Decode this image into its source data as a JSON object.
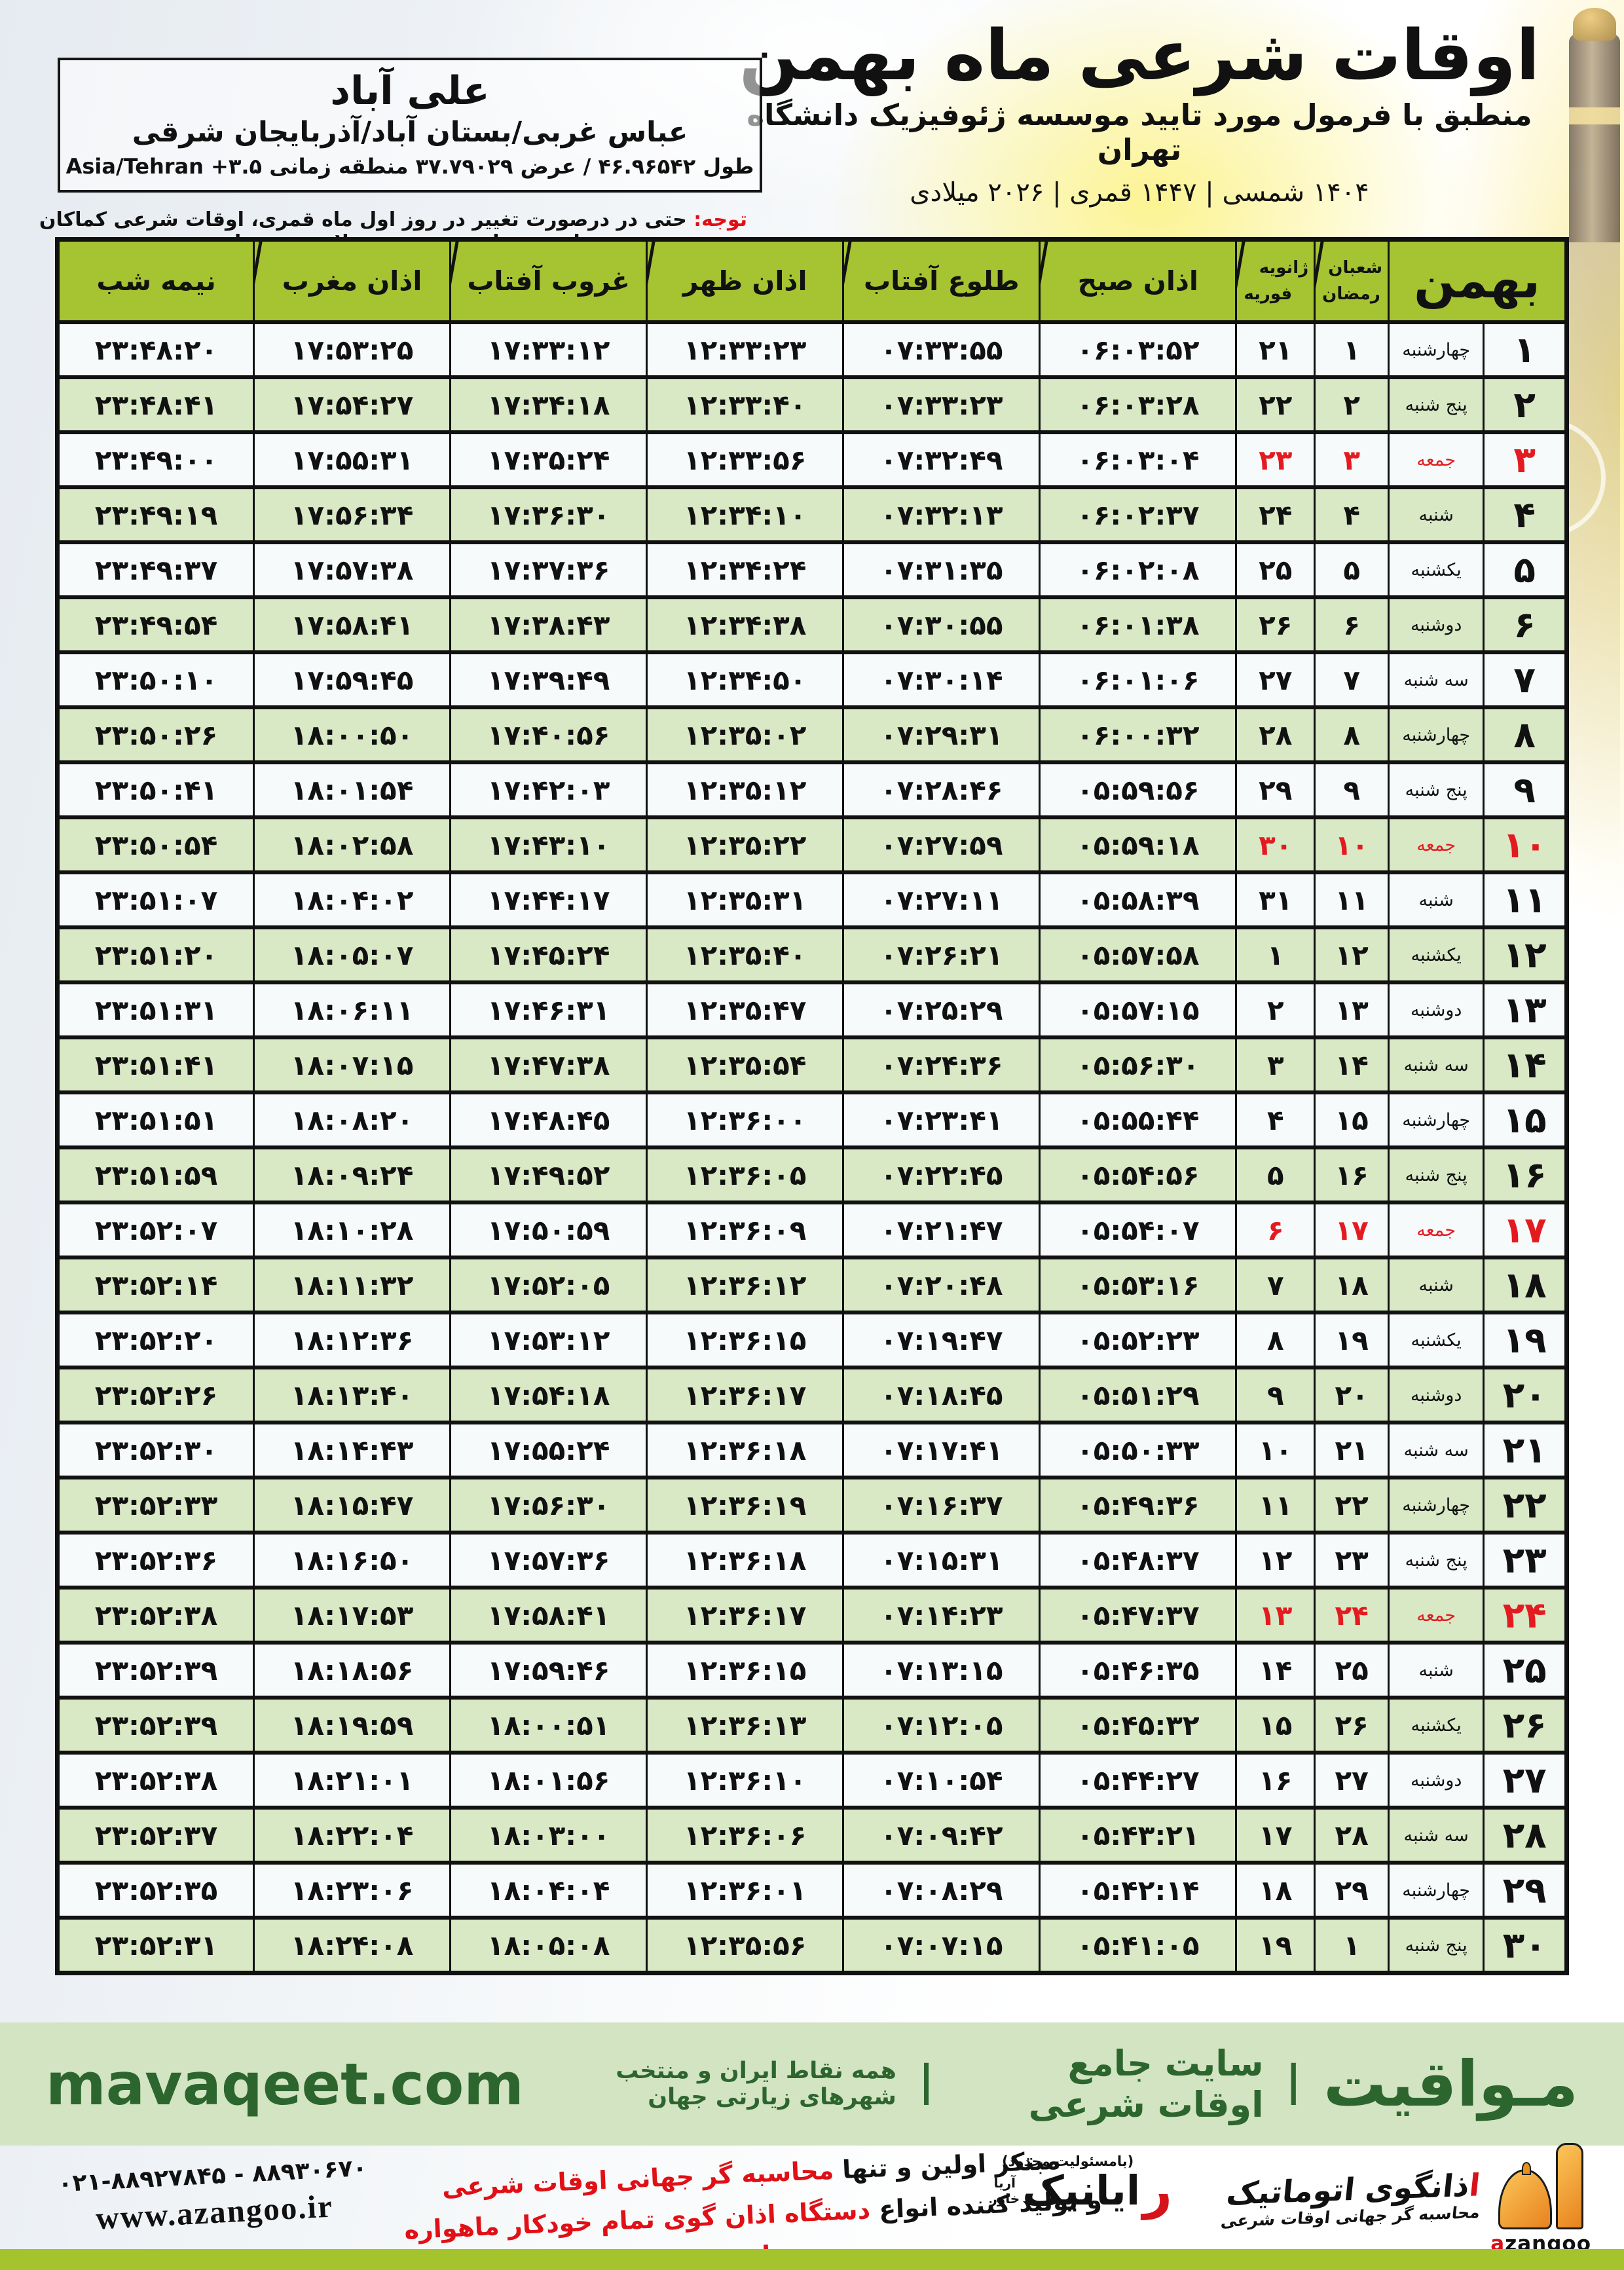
{
  "colors": {
    "header_green": "#a6c331",
    "row_green": "#d9e8c5",
    "friday_red": "#e31b21",
    "band_green": "#d2e4c2",
    "brand_dark_green": "#2d652f",
    "bottom_bar_green": "#a4c32d",
    "logo_orange": "#e8821e"
  },
  "header": {
    "title": "اوقات شرعی ماه بهمن",
    "subtitle": "منطبق با فرمول مورد تایید موسسه ژئوفیزیک دانشگاه تهران",
    "years": "۱۴۰۴ شمسی | ۱۴۴۷ قمری | ۲۰۲۶ میلادی"
  },
  "location": {
    "city": "علی آباد",
    "region": "عباس غربی/بستان آباد/آذربایجان شرقی",
    "coords": "طول ۴۶.۹۶۵۴۲ / عرض ۳۷.۷۹۰۲۹ منطقه زمانی ۳.۵+ Asia/Tehran"
  },
  "note": {
    "label": "توجه:",
    "text": " حتی در درصورت تغییر در روز اول ماه قمری، اوقات شرعی کماکان برای روزهای شمسی و میلادی معتبر است."
  },
  "table": {
    "headers": {
      "month": "بهمن",
      "lunar_top": "شعبان",
      "lunar_bottom": "رمضان",
      "greg_top": "ژانویه",
      "greg_bottom": "فوریه",
      "cols": [
        "اذان صبح",
        "طلوع آفتاب",
        "اذان ظهر",
        "غروب آفتاب",
        "اذان مغرب",
        "نیمه شب"
      ]
    },
    "rows": [
      {
        "d": "۱",
        "w": "چهارشنبه",
        "l": "۱",
        "g": "۲۱",
        "t": [
          "۰۶:۰۳:۵۲",
          "۰۷:۳۳:۵۵",
          "۱۲:۳۳:۲۳",
          "۱۷:۳۳:۱۲",
          "۱۷:۵۳:۲۵",
          "۲۳:۴۸:۲۰"
        ],
        "f": false
      },
      {
        "d": "۲",
        "w": "پنج شنبه",
        "l": "۲",
        "g": "۲۲",
        "t": [
          "۰۶:۰۳:۲۸",
          "۰۷:۳۳:۲۳",
          "۱۲:۳۳:۴۰",
          "۱۷:۳۴:۱۸",
          "۱۷:۵۴:۲۷",
          "۲۳:۴۸:۴۱"
        ],
        "f": false
      },
      {
        "d": "۳",
        "w": "جمعه",
        "l": "۳",
        "g": "۲۳",
        "t": [
          "۰۶:۰۳:۰۴",
          "۰۷:۳۲:۴۹",
          "۱۲:۳۳:۵۶",
          "۱۷:۳۵:۲۴",
          "۱۷:۵۵:۳۱",
          "۲۳:۴۹:۰۰"
        ],
        "f": true
      },
      {
        "d": "۴",
        "w": "شنبه",
        "l": "۴",
        "g": "۲۴",
        "t": [
          "۰۶:۰۲:۳۷",
          "۰۷:۳۲:۱۳",
          "۱۲:۳۴:۱۰",
          "۱۷:۳۶:۳۰",
          "۱۷:۵۶:۳۴",
          "۲۳:۴۹:۱۹"
        ],
        "f": false
      },
      {
        "d": "۵",
        "w": "یکشنبه",
        "l": "۵",
        "g": "۲۵",
        "t": [
          "۰۶:۰۲:۰۸",
          "۰۷:۳۱:۳۵",
          "۱۲:۳۴:۲۴",
          "۱۷:۳۷:۳۶",
          "۱۷:۵۷:۳۸",
          "۲۳:۴۹:۳۷"
        ],
        "f": false
      },
      {
        "d": "۶",
        "w": "دوشنبه",
        "l": "۶",
        "g": "۲۶",
        "t": [
          "۰۶:۰۱:۳۸",
          "۰۷:۳۰:۵۵",
          "۱۲:۳۴:۳۸",
          "۱۷:۳۸:۴۳",
          "۱۷:۵۸:۴۱",
          "۲۳:۴۹:۵۴"
        ],
        "f": false
      },
      {
        "d": "۷",
        "w": "سه شنبه",
        "l": "۷",
        "g": "۲۷",
        "t": [
          "۰۶:۰۱:۰۶",
          "۰۷:۳۰:۱۴",
          "۱۲:۳۴:۵۰",
          "۱۷:۳۹:۴۹",
          "۱۷:۵۹:۴۵",
          "۲۳:۵۰:۱۰"
        ],
        "f": false
      },
      {
        "d": "۸",
        "w": "چهارشنبه",
        "l": "۸",
        "g": "۲۸",
        "t": [
          "۰۶:۰۰:۳۲",
          "۰۷:۲۹:۳۱",
          "۱۲:۳۵:۰۲",
          "۱۷:۴۰:۵۶",
          "۱۸:۰۰:۵۰",
          "۲۳:۵۰:۲۶"
        ],
        "f": false
      },
      {
        "d": "۹",
        "w": "پنج شنبه",
        "l": "۹",
        "g": "۲۹",
        "t": [
          "۰۵:۵۹:۵۶",
          "۰۷:۲۸:۴۶",
          "۱۲:۳۵:۱۲",
          "۱۷:۴۲:۰۳",
          "۱۸:۰۱:۵۴",
          "۲۳:۵۰:۴۱"
        ],
        "f": false
      },
      {
        "d": "۱۰",
        "w": "جمعه",
        "l": "۱۰",
        "g": "۳۰",
        "t": [
          "۰۵:۵۹:۱۸",
          "۰۷:۲۷:۵۹",
          "۱۲:۳۵:۲۲",
          "۱۷:۴۳:۱۰",
          "۱۸:۰۲:۵۸",
          "۲۳:۵۰:۵۴"
        ],
        "f": true
      },
      {
        "d": "۱۱",
        "w": "شنبه",
        "l": "۱۱",
        "g": "۳۱",
        "t": [
          "۰۵:۵۸:۳۹",
          "۰۷:۲۷:۱۱",
          "۱۲:۳۵:۳۱",
          "۱۷:۴۴:۱۷",
          "۱۸:۰۴:۰۲",
          "۲۳:۵۱:۰۷"
        ],
        "f": false
      },
      {
        "d": "۱۲",
        "w": "یکشنبه",
        "l": "۱۲",
        "g": "۱",
        "t": [
          "۰۵:۵۷:۵۸",
          "۰۷:۲۶:۲۱",
          "۱۲:۳۵:۴۰",
          "۱۷:۴۵:۲۴",
          "۱۸:۰۵:۰۷",
          "۲۳:۵۱:۲۰"
        ],
        "f": false
      },
      {
        "d": "۱۳",
        "w": "دوشنبه",
        "l": "۱۳",
        "g": "۲",
        "t": [
          "۰۵:۵۷:۱۵",
          "۰۷:۲۵:۲۹",
          "۱۲:۳۵:۴۷",
          "۱۷:۴۶:۳۱",
          "۱۸:۰۶:۱۱",
          "۲۳:۵۱:۳۱"
        ],
        "f": false
      },
      {
        "d": "۱۴",
        "w": "سه شنبه",
        "l": "۱۴",
        "g": "۳",
        "t": [
          "۰۵:۵۶:۳۰",
          "۰۷:۲۴:۳۶",
          "۱۲:۳۵:۵۴",
          "۱۷:۴۷:۳۸",
          "۱۸:۰۷:۱۵",
          "۲۳:۵۱:۴۱"
        ],
        "f": false
      },
      {
        "d": "۱۵",
        "w": "چهارشنبه",
        "l": "۱۵",
        "g": "۴",
        "t": [
          "۰۵:۵۵:۴۴",
          "۰۷:۲۳:۴۱",
          "۱۲:۳۶:۰۰",
          "۱۷:۴۸:۴۵",
          "۱۸:۰۸:۲۰",
          "۲۳:۵۱:۵۱"
        ],
        "f": false
      },
      {
        "d": "۱۶",
        "w": "پنج شنبه",
        "l": "۱۶",
        "g": "۵",
        "t": [
          "۰۵:۵۴:۵۶",
          "۰۷:۲۲:۴۵",
          "۱۲:۳۶:۰۵",
          "۱۷:۴۹:۵۲",
          "۱۸:۰۹:۲۴",
          "۲۳:۵۱:۵۹"
        ],
        "f": false
      },
      {
        "d": "۱۷",
        "w": "جمعه",
        "l": "۱۷",
        "g": "۶",
        "t": [
          "۰۵:۵۴:۰۷",
          "۰۷:۲۱:۴۷",
          "۱۲:۳۶:۰۹",
          "۱۷:۵۰:۵۹",
          "۱۸:۱۰:۲۸",
          "۲۳:۵۲:۰۷"
        ],
        "f": true
      },
      {
        "d": "۱۸",
        "w": "شنبه",
        "l": "۱۸",
        "g": "۷",
        "t": [
          "۰۵:۵۳:۱۶",
          "۰۷:۲۰:۴۸",
          "۱۲:۳۶:۱۲",
          "۱۷:۵۲:۰۵",
          "۱۸:۱۱:۳۲",
          "۲۳:۵۲:۱۴"
        ],
        "f": false
      },
      {
        "d": "۱۹",
        "w": "یکشنبه",
        "l": "۱۹",
        "g": "۸",
        "t": [
          "۰۵:۵۲:۲۳",
          "۰۷:۱۹:۴۷",
          "۱۲:۳۶:۱۵",
          "۱۷:۵۳:۱۲",
          "۱۸:۱۲:۳۶",
          "۲۳:۵۲:۲۰"
        ],
        "f": false
      },
      {
        "d": "۲۰",
        "w": "دوشنبه",
        "l": "۲۰",
        "g": "۹",
        "t": [
          "۰۵:۵۱:۲۹",
          "۰۷:۱۸:۴۵",
          "۱۲:۳۶:۱۷",
          "۱۷:۵۴:۱۸",
          "۱۸:۱۳:۴۰",
          "۲۳:۵۲:۲۶"
        ],
        "f": false
      },
      {
        "d": "۲۱",
        "w": "سه شنبه",
        "l": "۲۱",
        "g": "۱۰",
        "t": [
          "۰۵:۵۰:۳۳",
          "۰۷:۱۷:۴۱",
          "۱۲:۳۶:۱۸",
          "۱۷:۵۵:۲۴",
          "۱۸:۱۴:۴۳",
          "۲۳:۵۲:۳۰"
        ],
        "f": false
      },
      {
        "d": "۲۲",
        "w": "چهارشنبه",
        "l": "۲۲",
        "g": "۱۱",
        "t": [
          "۰۵:۴۹:۳۶",
          "۰۷:۱۶:۳۷",
          "۱۲:۳۶:۱۹",
          "۱۷:۵۶:۳۰",
          "۱۸:۱۵:۴۷",
          "۲۳:۵۲:۳۳"
        ],
        "f": false
      },
      {
        "d": "۲۳",
        "w": "پنج شنبه",
        "l": "۲۳",
        "g": "۱۲",
        "t": [
          "۰۵:۴۸:۳۷",
          "۰۷:۱۵:۳۱",
          "۱۲:۳۶:۱۸",
          "۱۷:۵۷:۳۶",
          "۱۸:۱۶:۵۰",
          "۲۳:۵۲:۳۶"
        ],
        "f": false
      },
      {
        "d": "۲۴",
        "w": "جمعه",
        "l": "۲۴",
        "g": "۱۳",
        "t": [
          "۰۵:۴۷:۳۷",
          "۰۷:۱۴:۲۳",
          "۱۲:۳۶:۱۷",
          "۱۷:۵۸:۴۱",
          "۱۸:۱۷:۵۳",
          "۲۳:۵۲:۳۸"
        ],
        "f": true
      },
      {
        "d": "۲۵",
        "w": "شنبه",
        "l": "۲۵",
        "g": "۱۴",
        "t": [
          "۰۵:۴۶:۳۵",
          "۰۷:۱۳:۱۵",
          "۱۲:۳۶:۱۵",
          "۱۷:۵۹:۴۶",
          "۱۸:۱۸:۵۶",
          "۲۳:۵۲:۳۹"
        ],
        "f": false
      },
      {
        "d": "۲۶",
        "w": "یکشنبه",
        "l": "۲۶",
        "g": "۱۵",
        "t": [
          "۰۵:۴۵:۳۲",
          "۰۷:۱۲:۰۵",
          "۱۲:۳۶:۱۳",
          "۱۸:۰۰:۵۱",
          "۱۸:۱۹:۵۹",
          "۲۳:۵۲:۳۹"
        ],
        "f": false
      },
      {
        "d": "۲۷",
        "w": "دوشنبه",
        "l": "۲۷",
        "g": "۱۶",
        "t": [
          "۰۵:۴۴:۲۷",
          "۰۷:۱۰:۵۴",
          "۱۲:۳۶:۱۰",
          "۱۸:۰۱:۵۶",
          "۱۸:۲۱:۰۱",
          "۲۳:۵۲:۳۸"
        ],
        "f": false
      },
      {
        "d": "۲۸",
        "w": "سه شنبه",
        "l": "۲۸",
        "g": "۱۷",
        "t": [
          "۰۵:۴۳:۲۱",
          "۰۷:۰۹:۴۲",
          "۱۲:۳۶:۰۶",
          "۱۸:۰۳:۰۰",
          "۱۸:۲۲:۰۴",
          "۲۳:۵۲:۳۷"
        ],
        "f": false
      },
      {
        "d": "۲۹",
        "w": "چهارشنبه",
        "l": "۲۹",
        "g": "۱۸",
        "t": [
          "۰۵:۴۲:۱۴",
          "۰۷:۰۸:۲۹",
          "۱۲:۳۶:۰۱",
          "۱۸:۰۴:۰۴",
          "۱۸:۲۳:۰۶",
          "۲۳:۵۲:۳۵"
        ],
        "f": false
      },
      {
        "d": "۳۰",
        "w": "پنج شنبه",
        "l": "۱",
        "g": "۱۹",
        "t": [
          "۰۵:۴۱:۰۵",
          "۰۷:۰۷:۱۵",
          "۱۲:۳۵:۵۶",
          "۱۸:۰۵:۰۸",
          "۱۸:۲۴:۰۸",
          "۲۳:۵۲:۳۱"
        ],
        "f": false
      }
    ]
  },
  "footer": {
    "band": {
      "brand": "مـواقیت",
      "separator": "|",
      "tagline": "سایت جامع اوقات شرعی",
      "coverage": "همه نقاط ایران و منتخب شهرهای زیارتی جهان",
      "domain": "mavaqeet.com"
    },
    "promo": {
      "line1_black": "مبتکر اولین و تنها ",
      "line1_red": "محاسبه گر جهانی اوقات شرعی",
      "line2_black": "و تولید کننده انواع ",
      "line2_red": "دستگاه اذان گوی تمام خودکار ماهواره ای"
    },
    "contact": {
      "phones": "۰۲۱-۸۸۹۲۷۸۴۵ - ۸۸۹۳۰۶۷۰",
      "website": "www.azangoo.ir"
    },
    "rayanik": {
      "note": "(بامسئولیت محدود)",
      "initial": "ر",
      "name": "ایانیک",
      "top_small": "آریا",
      "bottom_small": "خاور"
    },
    "azangoo": {
      "title_first": "ا",
      "title_rest": "ذانگوی اتوماتیک",
      "subtitle": "محاسبه گر جهانی اوقات شرعی",
      "wordmark_first": "a",
      "wordmark_rest": "zangoo"
    }
  }
}
